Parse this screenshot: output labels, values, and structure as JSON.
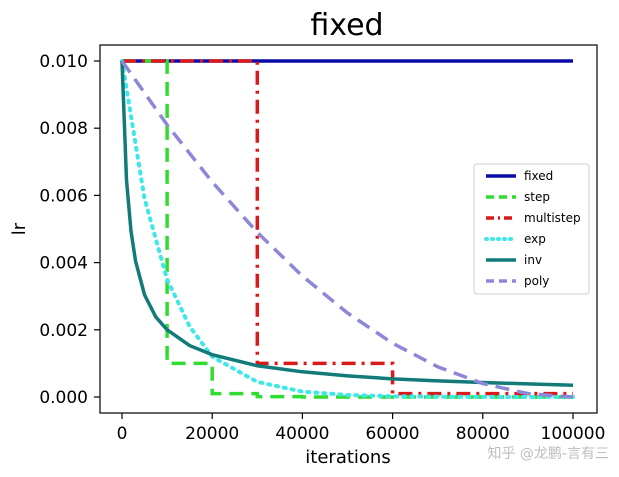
{
  "watermark": "知乎 @龙鹏-言有三",
  "colors": {
    "fixed": "#0a0aa8",
    "step": "#2fdc2f",
    "multistep": "#d81a1a",
    "exp": "#3fe8e8",
    "inv": "#137a7a",
    "poly": "#8c87d8"
  },
  "chart_data": {
    "type": "line",
    "title": "fixed",
    "xlabel": "iterations",
    "ylabel": "lr",
    "xlim": [
      0,
      100000
    ],
    "ylim": [
      0,
      0.01
    ],
    "xticks": [
      0,
      20000,
      40000,
      60000,
      80000,
      100000
    ],
    "xtick_labels": [
      "0",
      "20000",
      "40000",
      "60000",
      "80000",
      "100000"
    ],
    "yticks": [
      0,
      0.002,
      0.004,
      0.006,
      0.008,
      0.01
    ],
    "ytick_labels": [
      "0.000",
      "0.002",
      "0.004",
      "0.006",
      "0.008",
      "0.010"
    ],
    "legend_position": "center-right",
    "grid": false,
    "series": [
      {
        "name": "fixed",
        "style": "solid",
        "x": [
          0,
          100000
        ],
        "y": [
          0.01,
          0.01
        ]
      },
      {
        "name": "step",
        "style": "dashed",
        "x": [
          0,
          10000,
          10000,
          20000,
          20000,
          30000,
          30000,
          40000,
          40000,
          100000
        ],
        "y": [
          0.01,
          0.01,
          0.001,
          0.001,
          0.0001,
          0.0001,
          1e-05,
          1e-05,
          1e-06,
          1e-06
        ]
      },
      {
        "name": "multistep",
        "style": "dashdot",
        "x": [
          0,
          30000,
          30000,
          60000,
          60000,
          100000
        ],
        "y": [
          0.01,
          0.01,
          0.001,
          0.001,
          0.0001,
          0.0001
        ]
      },
      {
        "name": "exp",
        "style": "dotted",
        "x": [
          0,
          5000,
          10000,
          15000,
          20000,
          30000,
          40000,
          50000,
          60000,
          70000,
          80000,
          90000,
          100000
        ],
        "y": [
          0.01,
          0.0059,
          0.0035,
          0.0021,
          0.0012,
          0.00045,
          0.00016,
          6e-05,
          2e-05,
          1e-05,
          3e-06,
          1e-06,
          0
        ]
      },
      {
        "name": "inv",
        "style": "solid",
        "x": [
          0,
          1000,
          2000,
          3000,
          5000,
          7500,
          10000,
          15000,
          20000,
          30000,
          40000,
          50000,
          60000,
          70000,
          80000,
          90000,
          100000
        ],
        "y": [
          0.01,
          0.00645,
          0.00493,
          0.00405,
          0.00304,
          0.00238,
          0.002,
          0.00153,
          0.00126,
          0.00093,
          0.00075,
          0.00063,
          0.00054,
          0.00048,
          0.00043,
          0.00039,
          0.00035
        ]
      },
      {
        "name": "poly",
        "style": "dashed",
        "x": [
          0,
          10000,
          20000,
          30000,
          40000,
          50000,
          60000,
          70000,
          80000,
          90000,
          100000
        ],
        "y": [
          0.01,
          0.0081,
          0.0064,
          0.0049,
          0.0036,
          0.0025,
          0.0016,
          0.0009,
          0.0004,
          0.0001,
          0
        ]
      }
    ]
  }
}
